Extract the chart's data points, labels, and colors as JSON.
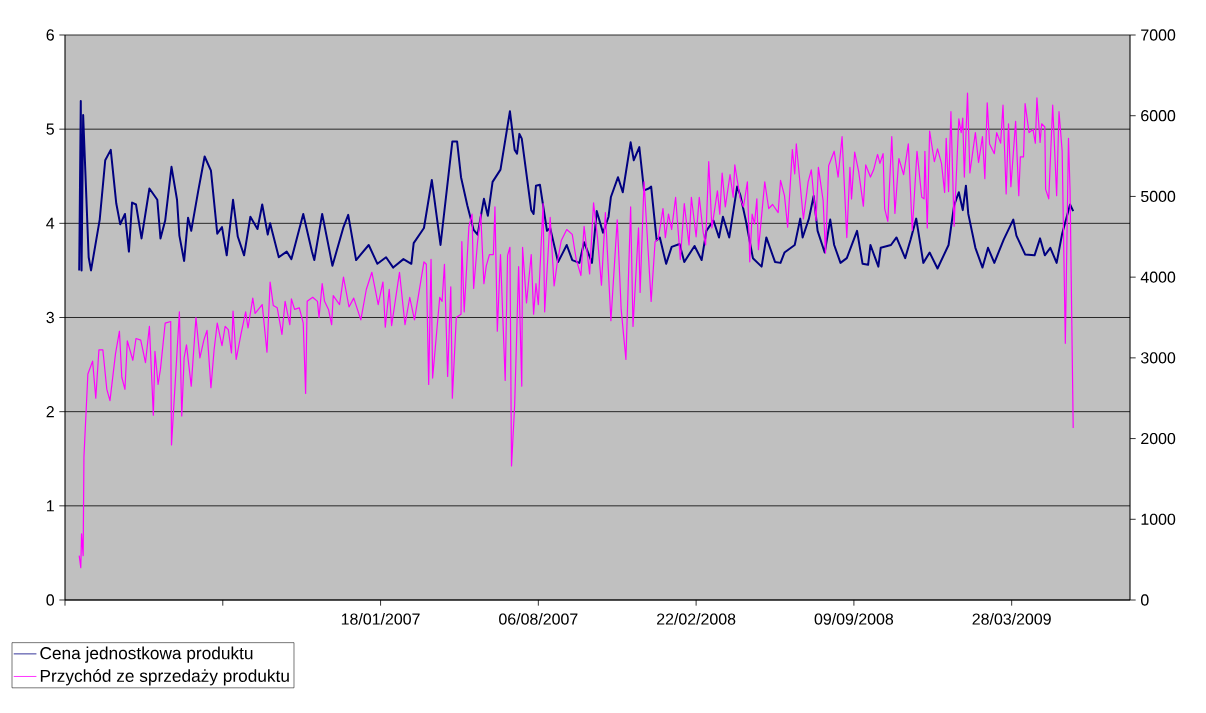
{
  "chart_data": {
    "type": "line",
    "xlim": [
      "2005-12-14",
      "2009-08-25"
    ],
    "xticks": [
      {
        "value": "2005-12-14",
        "label": null
      },
      {
        "value": "2006-07-02",
        "label": null
      },
      {
        "value": "2007-01-18",
        "label": "18/01/2007"
      },
      {
        "value": "2007-08-06",
        "label": "06/08/2007"
      },
      {
        "value": "2008-02-22",
        "label": "22/02/2008"
      },
      {
        "value": "2008-09-09",
        "label": "09/09/2008"
      },
      {
        "value": "2009-03-28",
        "label": "28/03/2009"
      }
    ],
    "ylim": [
      0,
      6
    ],
    "yticks": [
      0,
      1,
      2,
      3,
      4,
      5,
      6
    ],
    "y2lim": [
      0,
      7000
    ],
    "y2ticks": [
      0,
      1000,
      2000,
      3000,
      4000,
      5000,
      6000,
      7000
    ],
    "grid": "y",
    "legend": "bottom left",
    "series": [
      {
        "name": "Cena jednostkowa produktu",
        "color": "#000080",
        "axis": "y",
        "x": [
          "2006-01-01",
          "2006-01-03",
          "2006-01-04",
          "2006-01-06",
          "2006-01-13",
          "2006-01-16",
          "2006-01-27",
          "2006-02-03",
          "2006-02-10",
          "2006-02-17",
          "2006-02-22",
          "2006-02-28",
          "2006-03-05",
          "2006-03-09",
          "2006-03-14",
          "2006-03-21",
          "2006-03-31",
          "2006-04-10",
          "2006-04-14",
          "2006-04-20",
          "2006-04-28",
          "2006-05-05",
          "2006-05-08",
          "2006-05-14",
          "2006-05-19",
          "2006-05-23",
          "2006-06-01",
          "2006-06-09",
          "2006-06-17",
          "2006-06-25",
          "2006-07-01",
          "2006-07-07",
          "2006-07-15",
          "2006-07-21",
          "2006-07-29",
          "2006-08-06",
          "2006-08-15",
          "2006-08-21",
          "2006-08-28",
          "2006-08-31",
          "2006-09-11",
          "2006-09-21",
          "2006-09-27",
          "2006-10-12",
          "2006-10-23",
          "2006-10-26",
          "2006-11-05",
          "2006-11-18",
          "2006-12-02",
          "2006-12-08",
          "2006-12-18",
          "2007-01-03",
          "2007-01-14",
          "2007-01-25",
          "2007-02-03",
          "2007-02-16",
          "2007-02-26",
          "2007-03-01",
          "2007-03-14",
          "2007-03-24",
          "2007-04-04",
          "2007-04-19",
          "2007-04-25",
          "2007-04-30",
          "2007-05-08",
          "2007-05-16",
          "2007-05-21",
          "2007-05-29",
          "2007-06-03",
          "2007-06-09",
          "2007-06-19",
          "2007-07-01",
          "2007-07-07",
          "2007-07-10",
          "2007-07-13",
          "2007-07-16",
          "2007-07-28",
          "2007-07-31",
          "2007-08-03",
          "2007-08-08",
          "2007-08-17",
          "2007-08-21",
          "2007-08-31",
          "2007-09-05",
          "2007-09-11",
          "2007-09-18",
          "2007-09-27",
          "2007-10-03",
          "2007-10-13",
          "2007-10-19",
          "2007-10-27",
          "2007-11-03",
          "2007-11-06",
          "2007-11-15",
          "2007-11-21",
          "2007-12-01",
          "2007-12-05",
          "2007-12-12",
          "2007-12-18",
          "2007-12-24",
          "2007-12-27",
          "2008-01-03",
          "2008-01-07",
          "2008-01-15",
          "2008-01-22",
          "2008-02-01",
          "2008-02-07",
          "2008-02-20",
          "2008-02-29",
          "2008-03-06",
          "2008-03-15",
          "2008-03-22",
          "2008-03-27",
          "2008-04-04",
          "2008-04-14",
          "2008-04-18",
          "2008-04-25",
          "2008-05-04",
          "2008-05-15",
          "2008-05-21",
          "2008-06-01",
          "2008-06-08",
          "2008-06-13",
          "2008-06-26",
          "2008-07-03",
          "2008-07-06",
          "2008-07-14",
          "2008-07-20",
          "2008-07-25",
          "2008-08-03",
          "2008-08-10",
          "2008-08-15",
          "2008-08-23",
          "2008-08-31",
          "2008-09-13",
          "2008-09-20",
          "2008-09-27",
          "2008-09-30",
          "2008-10-10",
          "2008-10-13",
          "2008-10-26",
          "2008-11-02",
          "2008-11-13",
          "2008-11-20",
          "2008-11-27",
          "2008-12-06",
          "2008-12-14",
          "2008-12-24",
          "2009-01-07",
          "2009-01-14",
          "2009-01-20",
          "2009-01-25",
          "2009-01-29",
          "2009-02-01",
          "2009-02-10",
          "2009-02-19",
          "2009-02-26",
          "2009-03-06",
          "2009-03-18",
          "2009-03-30",
          "2009-04-03",
          "2009-04-14",
          "2009-04-26",
          "2009-05-03",
          "2009-05-09",
          "2009-05-16",
          "2009-05-24",
          "2009-05-31",
          "2009-06-10",
          "2009-06-14"
        ],
        "values": [
          3.5,
          5.3,
          3.5,
          5.15,
          3.64,
          3.5,
          4.04,
          4.67,
          4.78,
          4.21,
          3.99,
          4.1,
          3.7,
          4.22,
          4.2,
          3.84,
          4.37,
          4.25,
          3.84,
          4.03,
          4.6,
          4.25,
          3.87,
          3.6,
          4.06,
          3.92,
          4.35,
          4.71,
          4.56,
          3.89,
          3.96,
          3.66,
          4.25,
          3.86,
          3.66,
          4.07,
          3.94,
          4.2,
          3.88,
          4.0,
          3.64,
          3.7,
          3.62,
          4.1,
          3.7,
          3.61,
          4.1,
          3.55,
          3.96,
          4.09,
          3.61,
          3.77,
          3.57,
          3.64,
          3.53,
          3.62,
          3.57,
          3.79,
          3.95,
          4.46,
          3.77,
          4.87,
          4.87,
          4.49,
          4.19,
          3.93,
          3.88,
          4.26,
          4.08,
          4.44,
          4.57,
          5.19,
          4.78,
          4.74,
          4.95,
          4.9,
          4.14,
          4.1,
          4.4,
          4.41,
          3.92,
          3.95,
          3.59,
          3.67,
          3.77,
          3.61,
          3.58,
          3.8,
          3.58,
          4.13,
          3.9,
          4.07,
          4.28,
          4.49,
          4.33,
          4.86,
          4.67,
          4.81,
          4.35,
          4.37,
          4.39,
          3.82,
          3.85,
          3.57,
          3.75,
          3.78,
          3.59,
          3.76,
          3.61,
          3.92,
          4.03,
          3.85,
          4.07,
          3.85,
          4.39,
          4.3,
          4.03,
          3.63,
          3.54,
          3.85,
          3.59,
          3.58,
          3.69,
          3.77,
          4.05,
          3.85,
          4.05,
          4.29,
          3.92,
          3.69,
          4.04,
          3.77,
          3.58,
          3.63,
          3.92,
          3.57,
          3.56,
          3.77,
          3.54,
          3.74,
          3.77,
          3.85,
          3.63,
          3.83,
          4.05,
          3.58,
          3.69,
          3.52,
          3.77,
          4.19,
          4.33,
          4.14,
          4.4,
          4.1,
          3.74,
          3.53,
          3.74,
          3.58,
          3.83,
          4.04,
          3.87,
          3.67,
          3.66,
          3.84,
          3.66,
          3.74,
          3.58,
          3.89,
          4.2,
          4.13
        ]
      },
      {
        "name": "Przychód ze sprzedaży produktu",
        "color": "#ff00ff",
        "axis": "y2",
        "x": [
          "2006-01-01",
          "2006-01-03",
          "2006-01-04",
          "2006-01-06",
          "2006-01-07",
          "2006-01-12",
          "2006-01-18",
          "2006-01-22",
          "2006-01-26",
          "2006-01-31",
          "2006-02-05",
          "2006-02-09",
          "2006-02-16",
          "2006-02-21",
          "2006-02-24",
          "2006-02-28",
          "2006-03-03",
          "2006-03-10",
          "2006-03-14",
          "2006-03-20",
          "2006-03-26",
          "2006-03-31",
          "2006-04-05",
          "2006-04-07",
          "2006-04-11",
          "2006-04-14",
          "2006-04-20",
          "2006-04-27",
          "2006-04-28",
          "2006-05-08",
          "2006-05-11",
          "2006-05-14",
          "2006-05-17",
          "2006-05-23",
          "2006-05-29",
          "2006-06-03",
          "2006-06-08",
          "2006-06-12",
          "2006-06-17",
          "2006-06-21",
          "2006-06-25",
          "2006-07-01",
          "2006-07-05",
          "2006-07-09",
          "2006-07-13",
          "2006-07-15",
          "2006-07-19",
          "2006-07-25",
          "2006-07-31",
          "2006-08-03",
          "2006-08-09",
          "2006-08-12",
          "2006-08-21",
          "2006-08-27",
          "2006-08-31",
          "2006-09-04",
          "2006-09-09",
          "2006-09-15",
          "2006-09-19",
          "2006-09-25",
          "2006-09-27",
          "2006-10-01",
          "2006-10-07",
          "2006-10-12",
          "2006-10-15",
          "2006-10-17",
          "2006-10-24",
          "2006-10-30",
          "2006-11-01",
          "2006-11-05",
          "2006-11-08",
          "2006-11-13",
          "2006-11-17",
          "2006-11-19",
          "2006-11-27",
          "2006-12-02",
          "2006-12-09",
          "2006-12-15",
          "2006-12-24",
          "2006-12-31",
          "2007-01-07",
          "2007-01-15",
          "2007-01-21",
          "2007-01-24",
          "2007-01-29",
          "2007-02-01",
          "2007-02-11",
          "2007-02-18",
          "2007-02-24",
          "2007-03-02",
          "2007-03-07",
          "2007-03-14",
          "2007-03-17",
          "2007-03-20",
          "2007-03-23",
          "2007-03-25",
          "2007-04-03",
          "2007-04-06",
          "2007-04-09",
          "2007-04-13",
          "2007-04-17",
          "2007-04-19",
          "2007-04-24",
          "2007-04-30",
          "2007-05-01",
          "2007-05-04",
          "2007-05-10",
          "2007-05-14",
          "2007-05-16",
          "2007-05-21",
          "2007-05-25",
          "2007-05-29",
          "2007-06-01",
          "2007-06-05",
          "2007-06-10",
          "2007-06-12",
          "2007-06-15",
          "2007-06-19",
          "2007-06-25",
          "2007-06-28",
          "2007-07-01",
          "2007-07-03",
          "2007-07-07",
          "2007-07-12",
          "2007-07-16",
          "2007-07-17",
          "2007-07-22",
          "2007-07-28",
          "2007-07-31",
          "2007-08-03",
          "2007-08-06",
          "2007-08-12",
          "2007-08-14",
          "2007-08-21",
          "2007-08-26",
          "2007-08-30",
          "2007-09-04",
          "2007-09-11",
          "2007-09-18",
          "2007-09-23",
          "2007-09-29",
          "2007-10-03",
          "2007-10-10",
          "2007-10-15",
          "2007-10-20",
          "2007-10-25",
          "2007-10-30",
          "2007-11-06",
          "2007-11-14",
          "2007-11-19",
          "2007-11-25",
          "2007-12-01",
          "2007-12-04",
          "2007-12-11",
          "2007-12-13",
          "2007-12-18",
          "2007-12-27",
          "2008-01-01",
          "2008-01-05",
          "2008-01-11",
          "2008-01-14",
          "2008-01-18",
          "2008-01-22",
          "2008-01-27",
          "2008-02-02",
          "2008-02-07",
          "2008-02-13",
          "2008-02-16",
          "2008-02-22",
          "2008-02-26",
          "2008-03-02",
          "2008-03-05",
          "2008-03-09",
          "2008-03-13",
          "2008-03-20",
          "2008-03-23",
          "2008-03-26",
          "2008-03-30",
          "2008-04-05",
          "2008-04-09",
          "2008-04-11",
          "2008-04-18",
          "2008-04-22",
          "2008-04-27",
          "2008-04-30",
          "2008-05-03",
          "2008-05-06",
          "2008-05-09",
          "2008-05-11",
          "2008-05-19",
          "2008-05-24",
          "2008-05-29",
          "2008-06-05",
          "2008-06-08",
          "2008-06-13",
          "2008-06-17",
          "2008-06-23",
          "2008-06-26",
          "2008-06-28",
          "2008-07-07",
          "2008-07-13",
          "2008-07-17",
          "2008-07-23",
          "2008-07-26",
          "2008-08-01",
          "2008-08-04",
          "2008-08-08",
          "2008-08-15",
          "2008-08-20",
          "2008-08-25",
          "2008-08-31",
          "2008-09-04",
          "2008-09-06",
          "2008-09-10",
          "2008-09-15",
          "2008-09-21",
          "2008-09-24",
          "2008-09-30",
          "2008-10-04",
          "2008-10-09",
          "2008-10-12",
          "2008-10-16",
          "2008-10-18",
          "2008-10-22",
          "2008-10-27",
          "2008-10-31",
          "2008-11-05",
          "2008-11-11",
          "2008-11-17",
          "2008-11-22",
          "2008-11-28",
          "2008-12-04",
          "2008-12-07",
          "2008-12-08",
          "2008-12-11",
          "2008-12-14",
          "2008-12-20",
          "2008-12-24",
          "2008-12-29",
          "2009-01-02",
          "2009-01-04",
          "2009-01-07",
          "2009-01-10",
          "2009-01-14",
          "2009-01-20",
          "2009-01-23",
          "2009-01-25",
          "2009-01-27",
          "2009-01-31",
          "2009-02-03",
          "2009-02-10",
          "2009-02-14",
          "2009-02-19",
          "2009-02-22",
          "2009-02-25",
          "2009-02-28",
          "2009-03-06",
          "2009-03-09",
          "2009-03-14",
          "2009-03-17",
          "2009-03-21",
          "2009-03-24",
          "2009-03-27",
          "2009-04-02",
          "2009-04-06",
          "2009-04-08",
          "2009-04-12",
          "2009-04-14",
          "2009-04-19",
          "2009-04-24",
          "2009-04-27",
          "2009-04-29",
          "2009-05-03",
          "2009-05-05",
          "2009-05-09",
          "2009-05-10",
          "2009-05-14",
          "2009-05-19",
          "2009-05-24",
          "2009-05-27",
          "2009-05-31",
          "2009-06-04",
          "2009-06-08",
          "2009-06-10",
          "2009-06-14"
        ],
        "values": [
          550,
          400,
          820,
          550,
          1770,
          2800,
          2960,
          2500,
          3100,
          3100,
          2610,
          2470,
          3050,
          3330,
          2760,
          2610,
          3210,
          2970,
          3240,
          3220,
          2940,
          3390,
          2290,
          3080,
          2670,
          2860,
          3430,
          3450,
          1920,
          3570,
          2280,
          3000,
          3160,
          2650,
          3500,
          3000,
          3220,
          3340,
          2630,
          3100,
          3430,
          3150,
          3390,
          3350,
          3060,
          3580,
          2980,
          3290,
          3570,
          3370,
          3740,
          3550,
          3660,
          3070,
          3940,
          3650,
          3620,
          3290,
          3700,
          3410,
          3730,
          3600,
          3620,
          3430,
          2560,
          3700,
          3750,
          3700,
          3500,
          3920,
          3700,
          3600,
          3410,
          3770,
          3660,
          4000,
          3630,
          3740,
          3470,
          3850,
          4060,
          3660,
          3940,
          3380,
          3850,
          3400,
          4060,
          3410,
          3750,
          3470,
          3770,
          4190,
          4160,
          2670,
          4220,
          2750,
          3750,
          3700,
          4160,
          2770,
          3880,
          2500,
          3500,
          3540,
          4440,
          3570,
          4630,
          4780,
          3860,
          4440,
          4780,
          3920,
          4140,
          4280,
          4280,
          4870,
          3330,
          4280,
          2720,
          4270,
          4370,
          1660,
          2420,
          4130,
          2650,
          4370,
          3680,
          4280,
          3540,
          3920,
          3660,
          4910,
          3570,
          4740,
          3890,
          4180,
          4450,
          4590,
          4530,
          4220,
          4020,
          4630,
          4040,
          4920,
          4490,
          3900,
          4800,
          3460,
          4710,
          3600,
          2980,
          4870,
          3390,
          4610,
          3810,
          5180,
          3700,
          4440,
          4470,
          4850,
          4490,
          4780,
          4590,
          4990,
          4220,
          4910,
          4400,
          4990,
          4500,
          4990,
          4550,
          4400,
          5430,
          4610,
          5070,
          4780,
          5290,
          4870,
          5270,
          4990,
          5390,
          4970,
          4870,
          5180,
          4190,
          4780,
          4660,
          4970,
          4340,
          5180,
          4850,
          4900,
          4800,
          5200,
          5010,
          4620,
          5580,
          5280,
          5650,
          4720,
          5180,
          5330,
          4700,
          5360,
          4950,
          4300,
          5380,
          5560,
          5240,
          5740,
          4490,
          5360,
          4970,
          5550,
          5310,
          4880,
          5390,
          5240,
          5330,
          5520,
          5410,
          5530,
          4850,
          4690,
          5740,
          4790,
          5470,
          5270,
          5650,
          4580,
          5560,
          4990,
          4970,
          5560,
          4610,
          5810,
          5430,
          5590,
          5410,
          5050,
          5720,
          5060,
          6050,
          4630,
          5960,
          5790,
          5970,
          5240,
          6280,
          5290,
          5790,
          5420,
          5740,
          5220,
          6160,
          5650,
          5530,
          5790,
          5660,
          6130,
          5030,
          5900,
          5120,
          5930,
          5010,
          5490,
          5490,
          6150,
          5790,
          5830,
          5660,
          6220,
          5670,
          5900,
          5860,
          5090,
          4970,
          6130,
          5010,
          6050,
          5560,
          3180,
          5720,
          5080,
          2130
        ]
      }
    ]
  }
}
